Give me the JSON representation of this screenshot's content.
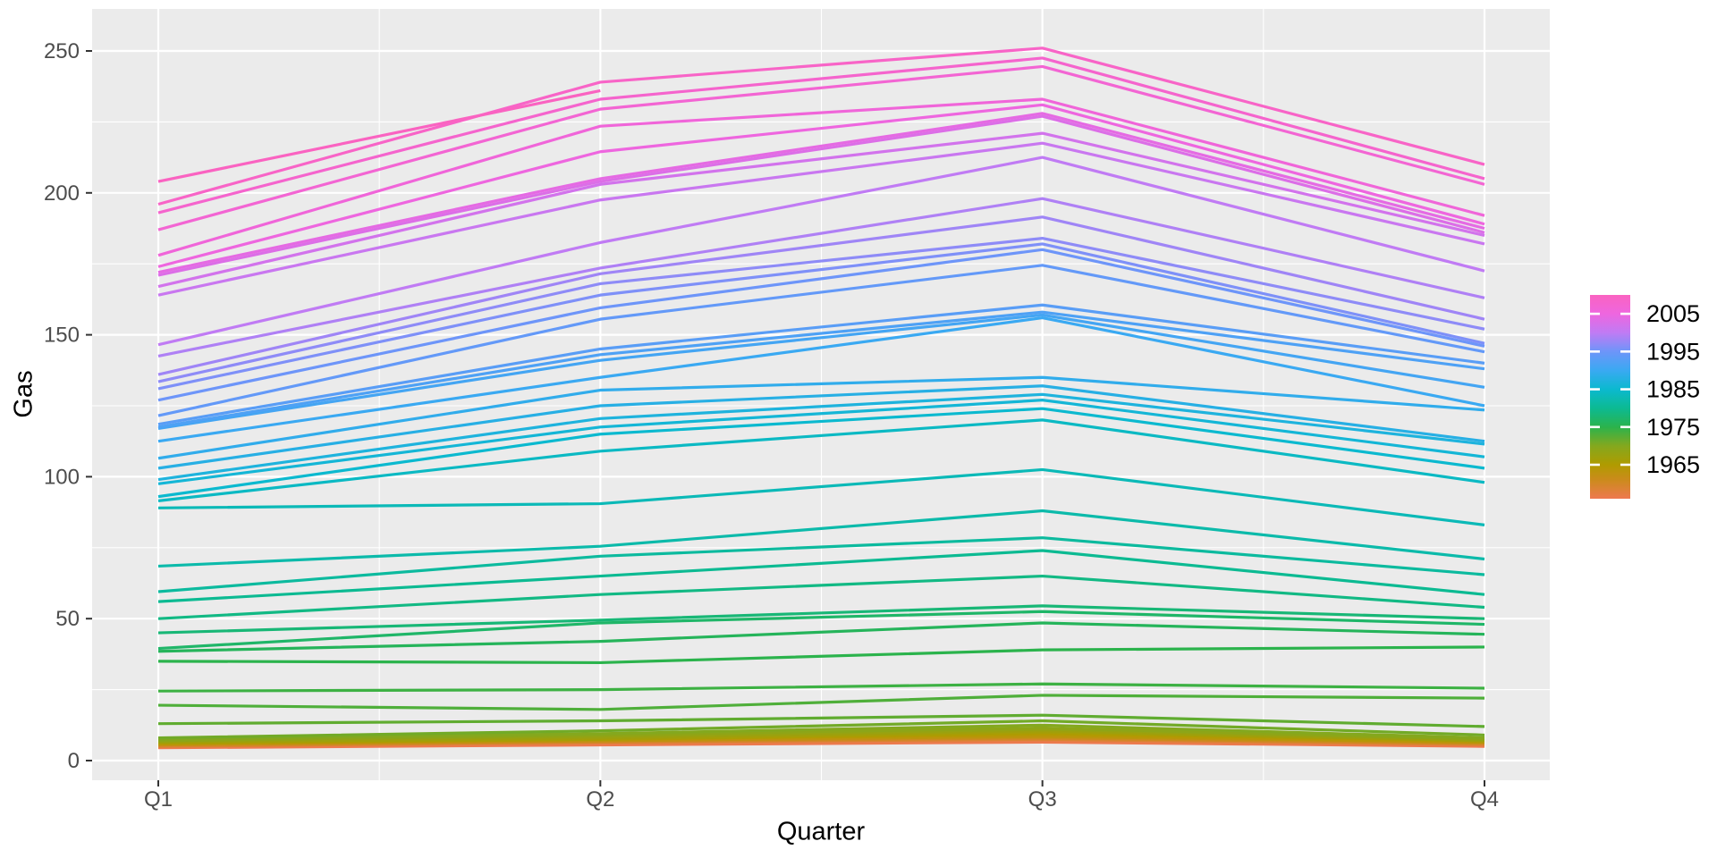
{
  "chart_data": {
    "type": "line",
    "title": "",
    "xlabel": "Quarter",
    "ylabel": "Gas",
    "categories": [
      "Q1",
      "Q2",
      "Q3",
      "Q4"
    ],
    "x_tick_labels": [
      "Q1",
      "Q2",
      "Q3",
      "Q4"
    ],
    "y_tick_labels": [
      "0",
      "50",
      "100",
      "150",
      "200",
      "250"
    ],
    "y_ticks": [
      0,
      50,
      100,
      150,
      200,
      250
    ],
    "y_minor_ticks": [
      25,
      75,
      125,
      175,
      225
    ],
    "ylim": [
      0,
      265
    ],
    "grid": "on",
    "legend_position": "right",
    "series": [
      {
        "year": 1956,
        "values": [
          4.5,
          5.5,
          6.5,
          5
        ]
      },
      {
        "year": 1957,
        "values": [
          5,
          6,
          7,
          5.5
        ]
      },
      {
        "year": 1958,
        "values": [
          5,
          6.5,
          7.5,
          5.5
        ]
      },
      {
        "year": 1959,
        "values": [
          5,
          6.5,
          7.5,
          6
        ]
      },
      {
        "year": 1960,
        "values": [
          5.5,
          6.5,
          8,
          6
        ]
      },
      {
        "year": 1961,
        "values": [
          5.5,
          7,
          8,
          6
        ]
      },
      {
        "year": 1962,
        "values": [
          5.5,
          7,
          8.5,
          6.5
        ]
      },
      {
        "year": 1963,
        "values": [
          6,
          7,
          8.5,
          6.5
        ]
      },
      {
        "year": 1964,
        "values": [
          6,
          7.5,
          9,
          6.5
        ]
      },
      {
        "year": 1965,
        "values": [
          6,
          7.5,
          9.5,
          7
        ]
      },
      {
        "year": 1966,
        "values": [
          6.5,
          7.5,
          10,
          7
        ]
      },
      {
        "year": 1967,
        "values": [
          6.5,
          8,
          10.5,
          7
        ]
      },
      {
        "year": 1968,
        "values": [
          7,
          8.5,
          11,
          7.5
        ]
      },
      {
        "year": 1969,
        "values": [
          7,
          9,
          11.5,
          7.5
        ]
      },
      {
        "year": 1970,
        "values": [
          7.5,
          9.5,
          12.5,
          8
        ]
      },
      {
        "year": 1971,
        "values": [
          8,
          10.5,
          14,
          9
        ]
      },
      {
        "year": 1972,
        "values": [
          13,
          14,
          16,
          12
        ]
      },
      {
        "year": 1973,
        "values": [
          19.5,
          18,
          23,
          22
        ]
      },
      {
        "year": 1974,
        "values": [
          24.5,
          25,
          27,
          25.5
        ]
      },
      {
        "year": 1975,
        "values": [
          35,
          34.5,
          39,
          40
        ]
      },
      {
        "year": 1976,
        "values": [
          38.5,
          42,
          48.5,
          44.5
        ]
      },
      {
        "year": 1977,
        "values": [
          39.5,
          48.5,
          52.5,
          48
        ]
      },
      {
        "year": 1978,
        "values": [
          45,
          49.5,
          54.5,
          50
        ]
      },
      {
        "year": 1979,
        "values": [
          50,
          58.5,
          65,
          54
        ]
      },
      {
        "year": 1980,
        "values": [
          56,
          65,
          74,
          58.5
        ]
      },
      {
        "year": 1981,
        "values": [
          59.5,
          72,
          78.5,
          65.5
        ]
      },
      {
        "year": 1982,
        "values": [
          68.5,
          75.5,
          88,
          71
        ]
      },
      {
        "year": 1983,
        "values": [
          89,
          90.5,
          102.5,
          83
        ]
      },
      {
        "year": 1984,
        "values": [
          91.5,
          109,
          120,
          98
        ]
      },
      {
        "year": 1985,
        "values": [
          93,
          115,
          124,
          103
        ]
      },
      {
        "year": 1986,
        "values": [
          97.5,
          117.5,
          127,
          107
        ]
      },
      {
        "year": 1987,
        "values": [
          99,
          120.5,
          129,
          111.5
        ]
      },
      {
        "year": 1988,
        "values": [
          103,
          125,
          132,
          112.5
        ]
      },
      {
        "year": 1989,
        "values": [
          106.5,
          130.5,
          135,
          123.5
        ]
      },
      {
        "year": 1990,
        "values": [
          112.5,
          135,
          156,
          125
        ]
      },
      {
        "year": 1991,
        "values": [
          117,
          141,
          157,
          131.5
        ]
      },
      {
        "year": 1992,
        "values": [
          117.5,
          143,
          158,
          138
        ]
      },
      {
        "year": 1993,
        "values": [
          118.5,
          145,
          160.5,
          140
        ]
      },
      {
        "year": 1994,
        "values": [
          121.5,
          155.5,
          174.5,
          144
        ]
      },
      {
        "year": 1995,
        "values": [
          127,
          159.5,
          180,
          146
        ]
      },
      {
        "year": 1996,
        "values": [
          131,
          164,
          182,
          147
        ]
      },
      {
        "year": 1997,
        "values": [
          133.5,
          168,
          184,
          152
        ]
      },
      {
        "year": 1998,
        "values": [
          136,
          171.5,
          191.5,
          155.5
        ]
      },
      {
        "year": 1999,
        "values": [
          142.5,
          173.5,
          198,
          163
        ]
      },
      {
        "year": 2000,
        "values": [
          146.5,
          182.5,
          212.5,
          172.5
        ]
      },
      {
        "year": 2001,
        "values": [
          164,
          197.5,
          217.5,
          182
        ]
      },
      {
        "year": 2002,
        "values": [
          167,
          203,
          221,
          185
        ]
      },
      {
        "year": 2003,
        "values": [
          171,
          204,
          227,
          186
        ]
      },
      {
        "year": 2004,
        "values": [
          172,
          205,
          228,
          187.5
        ]
      },
      {
        "year": 2005,
        "values": [
          174,
          214.5,
          231,
          189
        ]
      },
      {
        "year": 2006,
        "values": [
          178,
          223.5,
          233,
          192
        ]
      },
      {
        "year": 2007,
        "values": [
          187,
          229.5,
          244.5,
          203
        ]
      },
      {
        "year": 2008,
        "values": [
          193,
          233,
          247.5,
          205
        ]
      },
      {
        "year": 2009,
        "values": [
          196,
          239,
          251,
          210
        ]
      },
      {
        "year": 2010,
        "values": [
          204,
          236,
          null,
          null
        ]
      }
    ],
    "legend": {
      "title": "",
      "labels": [
        "2005",
        "1995",
        "1985",
        "1975",
        "1965"
      ],
      "label_years": [
        2005,
        1995,
        1985,
        1975,
        1965
      ],
      "year_min": 1956,
      "year_max": 2010,
      "gradient_stops": [
        {
          "year": 1956,
          "color": "#EE7950"
        },
        {
          "year": 1961,
          "color": "#CB8B1C"
        },
        {
          "year": 1965,
          "color": "#B09B00"
        },
        {
          "year": 1970,
          "color": "#84A81E"
        },
        {
          "year": 1975,
          "color": "#2BB34C"
        },
        {
          "year": 1980,
          "color": "#0CBA92"
        },
        {
          "year": 1985,
          "color": "#0BB9CF"
        },
        {
          "year": 1990,
          "color": "#3AA9F2"
        },
        {
          "year": 1995,
          "color": "#6D95F9"
        },
        {
          "year": 2000,
          "color": "#C07BF4"
        },
        {
          "year": 2005,
          "color": "#EE66DF"
        },
        {
          "year": 2010,
          "color": "#FA63C1"
        }
      ]
    },
    "colors": {
      "panel_background": "#EBEBEB",
      "grid_line": "#FFFFFF",
      "tick_label": "#4D4D4D",
      "axis_tick": "#333333",
      "axis_title": "#000000",
      "figure_background": "#FFFFFF"
    }
  }
}
